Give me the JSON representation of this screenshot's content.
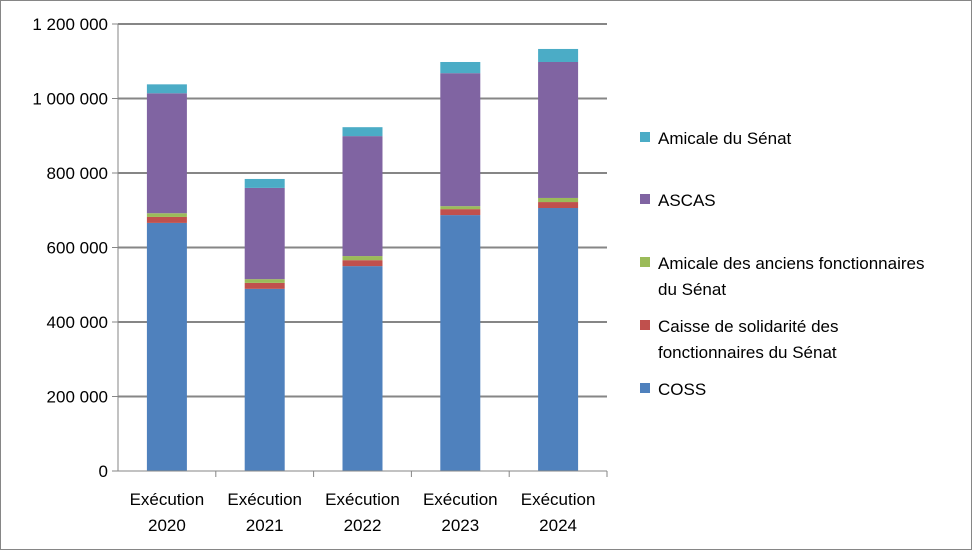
{
  "chart_data": {
    "type": "bar",
    "stacked": true,
    "categories": [
      "Exécution 2020",
      "Exécution 2021",
      "Exécution 2022",
      "Exécution 2023",
      "Exécution 2024"
    ],
    "category_lines": [
      [
        "Exécution",
        "2020"
      ],
      [
        "Exécution",
        "2021"
      ],
      [
        "Exécution",
        "2022"
      ],
      [
        "Exécution",
        "2023"
      ],
      [
        "Exécution",
        "2024"
      ]
    ],
    "series": [
      {
        "name": "COSS",
        "color": "#4F81BD",
        "values": [
          666000,
          489000,
          550000,
          687000,
          706000
        ]
      },
      {
        "name": "Caisse de solidarité des fonctionnaires du Sénat",
        "legend_lines": [
          "Caisse de solidarité des",
          "fonctionnaires du Sénat"
        ],
        "color": "#C0504D",
        "values": [
          16000,
          16000,
          16000,
          16000,
          16000
        ]
      },
      {
        "name": "Amicale des anciens fonctionnaires du Sénat",
        "legend_lines": [
          "Amicale des anciens fonctionnaires",
          "du Sénat"
        ],
        "color": "#9BBB59",
        "values": [
          10000,
          10000,
          11000,
          8000,
          11000
        ]
      },
      {
        "name": "ASCAS",
        "legend_lines": [
          "ASCAS"
        ],
        "color": "#8064A2",
        "values": [
          322000,
          245000,
          322000,
          357000,
          365000
        ]
      },
      {
        "name": "Amicale du Sénat",
        "legend_lines": [
          "Amicale du Sénat"
        ],
        "color": "#4BACC6",
        "values": [
          24000,
          24000,
          24000,
          30000,
          35000
        ]
      }
    ],
    "ylim": [
      0,
      1200000
    ],
    "yticks": [
      0,
      200000,
      400000,
      600000,
      800000,
      1000000,
      1200000
    ],
    "ytick_labels": [
      "0",
      "200 000",
      "400 000",
      "600 000",
      "800 000",
      "1 000 000",
      "1 200 000"
    ],
    "grid": true,
    "gridline_color": "#868686",
    "legend_position": "right",
    "title": "",
    "xlabel": "",
    "ylabel": ""
  }
}
